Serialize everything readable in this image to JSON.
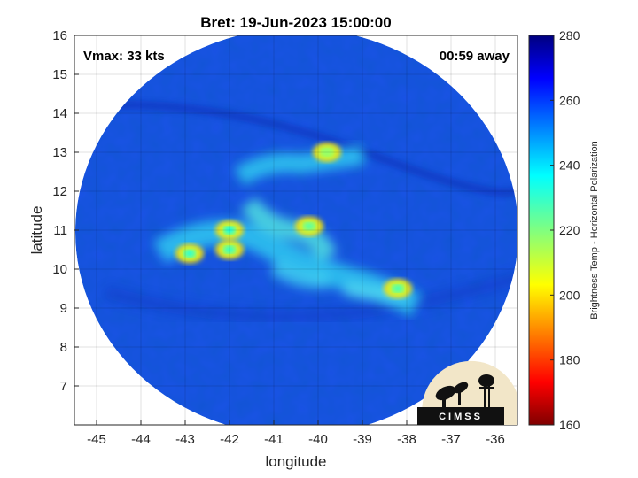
{
  "chart_data": {
    "type": "heatmap",
    "title": "Bret: 19-Jun-2023 15:00:00",
    "xlabel": "longitude",
    "ylabel": "latitude",
    "xlim": [
      -45.5,
      -35.5
    ],
    "ylim": [
      6,
      16
    ],
    "xticks": [
      "-45",
      "-44",
      "-43",
      "-42",
      "-41",
      "-40",
      "-39",
      "-38",
      "-37",
      "-36"
    ],
    "yticks": [
      "7",
      "8",
      "9",
      "10",
      "11",
      "12",
      "13",
      "14",
      "15",
      "16"
    ],
    "grid": true,
    "annotations": {
      "vmax": "Vmax: 33 kts",
      "away": "00:59 away"
    },
    "colorbar": {
      "label": "Brightness Temp - Horizontal Polarization",
      "range": [
        160,
        280
      ],
      "ticks": [
        "160",
        "180",
        "200",
        "220",
        "240",
        "260",
        "280"
      ],
      "colormap": "jet"
    },
    "swath": {
      "center": [
        -40.8,
        11.2
      ],
      "radius_deg": 5.5,
      "background_temp": 266
    },
    "features": [
      {
        "name": "cold-core-1",
        "lon": -42.0,
        "lat": 11.0,
        "temp": 205
      },
      {
        "name": "cold-core-2",
        "lon": -42.9,
        "lat": 10.4,
        "temp": 208
      },
      {
        "name": "cold-core-3",
        "lon": -40.2,
        "lat": 11.1,
        "temp": 215
      },
      {
        "name": "cold-core-4",
        "lon": -38.2,
        "lat": 9.5,
        "temp": 212
      },
      {
        "name": "cold-core-5",
        "lon": -42.0,
        "lat": 10.5,
        "temp": 210
      },
      {
        "name": "cold-core-6",
        "lon": -39.8,
        "lat": 13.0,
        "temp": 222
      }
    ]
  },
  "logo": {
    "text": "CIMSS"
  }
}
